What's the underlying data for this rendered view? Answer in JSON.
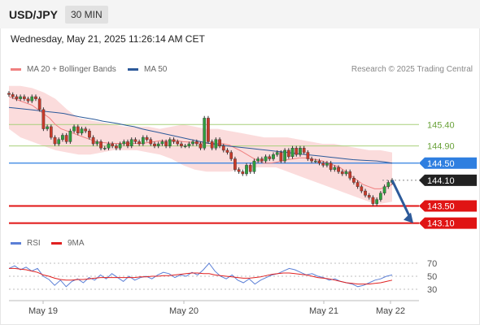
{
  "header": {
    "symbol": "USD/JPY",
    "timeframe": "30 MIN"
  },
  "timestamp": "Wednesday, May 21, 2025 11:26:14 AM CET",
  "legend": {
    "ma20": {
      "label": "MA 20 + Bollinger Bands",
      "color": "#f08080"
    },
    "ma50": {
      "label": "MA 50",
      "color": "#2d5a9a"
    },
    "rsi": {
      "label": "RSI",
      "color": "#5b7fd6"
    },
    "ma9": {
      "label": "9MA",
      "color": "#e02020"
    }
  },
  "research_note": "Research © 2025 Trading Central",
  "chart_data": {
    "type": "candlestick",
    "x_labels": [
      "May 19",
      "May 20",
      "May 21",
      "May 22"
    ],
    "price_range": [
      142.96,
      146.41
    ],
    "levels": [
      {
        "label": "145.40",
        "value": 145.4,
        "kind": "resistance",
        "color": "#a8d07a"
      },
      {
        "label": "144.90",
        "value": 144.9,
        "kind": "resistance",
        "color": "#a8d07a"
      },
      {
        "label": "144.50",
        "value": 144.5,
        "kind": "pivot",
        "color": "#2f7fe0"
      },
      {
        "label": "144.10",
        "value": 144.1,
        "kind": "last-price",
        "color": "#222222"
      },
      {
        "label": "143.50",
        "value": 143.5,
        "kind": "support",
        "color": "#e01414"
      },
      {
        "label": "143.10",
        "value": 143.1,
        "kind": "support",
        "color": "#e01414"
      }
    ],
    "close_series": [
      146.1,
      146.05,
      146.0,
      146.05,
      146.0,
      145.95,
      146.05,
      146.0,
      145.75,
      145.3,
      145.35,
      145.1,
      144.95,
      145.05,
      145.15,
      145.0,
      145.25,
      145.35,
      145.2,
      145.3,
      145.25,
      145.1,
      144.95,
      145.0,
      144.85,
      144.85,
      144.95,
      144.9,
      144.85,
      144.95,
      145.0,
      144.9,
      145.05,
      145.0,
      144.95,
      145.1,
      145.05,
      144.95,
      144.9,
      144.95,
      145.0,
      144.9,
      145.05,
      145.0,
      144.95,
      144.9,
      144.9,
      144.95,
      145.0,
      144.95,
      144.85,
      145.55,
      145.0,
      144.85,
      145.05,
      144.9,
      144.8,
      144.75,
      144.6,
      144.35,
      144.3,
      144.25,
      144.45,
      144.3,
      144.55,
      144.6,
      144.55,
      144.65,
      144.6,
      144.7,
      144.75,
      144.55,
      144.8,
      144.65,
      144.85,
      144.7,
      144.85,
      144.75,
      144.6,
      144.55,
      144.55,
      144.5,
      144.45,
      144.5,
      144.35,
      144.4,
      144.3,
      144.25,
      144.3,
      144.15,
      144.05,
      143.95,
      143.85,
      143.75,
      143.7,
      143.55,
      143.65,
      143.8,
      143.95,
      144.05,
      144.1
    ],
    "ma20_series": [
      146.05,
      146.0,
      145.95,
      145.9,
      145.85,
      145.75,
      145.65,
      145.55,
      145.4,
      145.3,
      145.25,
      145.2,
      145.15,
      145.1,
      145.05,
      145.0,
      144.98,
      144.97,
      144.96,
      144.96,
      144.96,
      144.96,
      144.96,
      144.96,
      144.98,
      145.0,
      145.02,
      145.02,
      145.02,
      145.02,
      145.0,
      144.99,
      144.98,
      144.97,
      144.96,
      144.96,
      144.96,
      144.95,
      144.92,
      144.85,
      144.78,
      144.7,
      144.62,
      144.55,
      144.5,
      144.5,
      144.52,
      144.55,
      144.58,
      144.6,
      144.62,
      144.62,
      144.6,
      144.58,
      144.55,
      144.5,
      144.45,
      144.4,
      144.3,
      144.2,
      144.1,
      144.0,
      143.95,
      143.9,
      143.9,
      143.95,
      144.0
    ],
    "ma50_series": [
      145.8,
      145.78,
      145.76,
      145.74,
      145.72,
      145.7,
      145.68,
      145.66,
      145.62,
      145.58,
      145.55,
      145.52,
      145.48,
      145.45,
      145.42,
      145.38,
      145.35,
      145.3,
      145.26,
      145.22,
      145.18,
      145.14,
      145.1,
      145.06,
      145.02,
      144.98,
      144.95,
      144.92,
      144.9,
      144.88,
      144.86,
      144.84,
      144.82,
      144.8,
      144.78,
      144.76,
      144.74,
      144.72,
      144.7,
      144.68,
      144.66,
      144.64,
      144.62,
      144.6,
      144.58,
      144.57,
      144.56,
      144.55,
      144.53,
      144.5
    ],
    "bb_upper": [
      146.3,
      146.3,
      146.25,
      146.15,
      146.0,
      145.75,
      145.55,
      145.5,
      145.45,
      145.4,
      145.35,
      145.35,
      145.35,
      145.3,
      145.35,
      145.4,
      145.35,
      145.3,
      145.3,
      145.25,
      145.2,
      145.15,
      145.1,
      145.1,
      145.1,
      145.05,
      145.0,
      144.95,
      144.95,
      144.9,
      144.85,
      144.8,
      144.8,
      144.75
    ],
    "bb_lower": [
      145.3,
      145.1,
      145.0,
      144.9,
      144.8,
      144.75,
      144.7,
      144.7,
      144.75,
      144.8,
      144.8,
      144.8,
      144.75,
      144.7,
      144.6,
      144.45,
      144.35,
      144.3,
      144.3,
      144.3,
      144.35,
      144.4,
      144.4,
      144.4,
      144.3,
      144.2,
      144.1,
      144.0,
      143.9,
      143.8,
      143.7,
      143.6,
      143.55,
      143.6
    ],
    "projection": {
      "from": 144.1,
      "to": 143.1
    },
    "rsi": {
      "ticks": [
        70,
        50,
        30
      ],
      "range": [
        20,
        80
      ],
      "rsi_series": [
        62,
        66,
        60,
        64,
        58,
        62,
        50,
        45,
        36,
        44,
        34,
        42,
        46,
        40,
        48,
        44,
        52,
        46,
        54,
        48,
        42,
        50,
        44,
        48,
        50,
        46,
        52,
        56,
        54,
        48,
        52,
        50,
        56,
        52,
        60,
        70,
        58,
        50,
        46,
        52,
        44,
        40,
        46,
        38,
        44,
        48,
        52,
        54,
        58,
        62,
        60,
        56,
        52,
        54,
        50,
        48,
        44,
        46,
        42,
        40,
        38,
        34,
        36,
        40,
        44,
        46,
        50,
        52
      ],
      "ma9_series": [
        62,
        62,
        61,
        60,
        58,
        56,
        52,
        50,
        47,
        45,
        44,
        44,
        45,
        45,
        46,
        47,
        48,
        48,
        48,
        48,
        48,
        48,
        48,
        49,
        49,
        50,
        50,
        51,
        51,
        52,
        53,
        54,
        55,
        55,
        54,
        54,
        52,
        51,
        50,
        49,
        48,
        47,
        47,
        48,
        49,
        51,
        53,
        54,
        55,
        55,
        54,
        53,
        52,
        50,
        48,
        47,
        46,
        44,
        42,
        40,
        39,
        38,
        38,
        38,
        39,
        40,
        42,
        44
      ]
    }
  }
}
